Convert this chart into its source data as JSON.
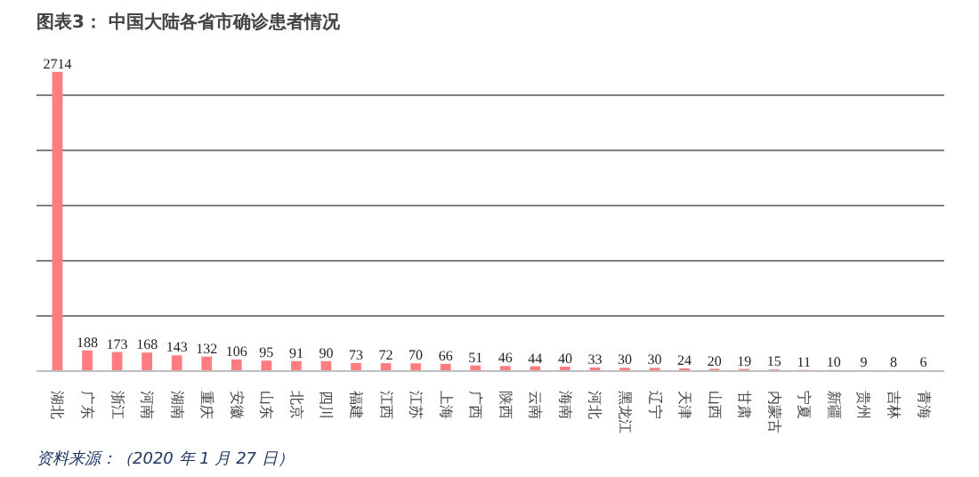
{
  "chart_data": {
    "type": "bar",
    "title": "图表3：  中国大陆各省市确诊患者情况",
    "categories": [
      "湖北",
      "广东",
      "浙江",
      "河南",
      "湖南",
      "重庆",
      "安徽",
      "山东",
      "北京",
      "四川",
      "福建",
      "江西",
      "江苏",
      "上海",
      "广西",
      "陕西",
      "云南",
      "海南",
      "河北",
      "黑龙江",
      "辽宁",
      "天津",
      "山西",
      "甘肃",
      "内蒙古",
      "宁夏",
      "新疆",
      "贵州",
      "吉林",
      "青海"
    ],
    "values": [
      2714,
      188,
      173,
      168,
      143,
      132,
      106,
      95,
      91,
      90,
      73,
      72,
      70,
      66,
      51,
      46,
      44,
      40,
      33,
      30,
      30,
      24,
      20,
      19,
      15,
      11,
      10,
      9,
      8,
      6
    ],
    "color": "#ff7c80",
    "data_labels": true,
    "grid": "y",
    "tick_labels": "x",
    "annotations": [
      "资料来源：（2020 年 1 月 27 日）"
    ]
  }
}
